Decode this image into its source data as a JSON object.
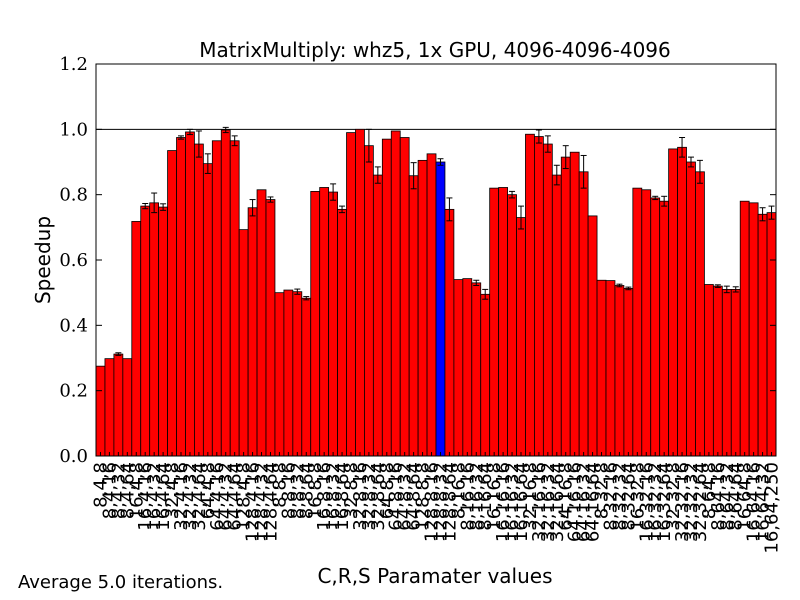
{
  "footer_note": "Average 5.0 iterations.",
  "chart_data": {
    "type": "bar",
    "title": "MatrixMultiply: whz5, 1x GPU, 4096-4096-4096",
    "xlabel": "C,R,S Paramater values",
    "ylabel": "Speedup",
    "ylim": [
      0,
      1.2
    ],
    "yticks": [
      "0.0",
      "0.2",
      "0.4",
      "0.6",
      "0.8",
      "1.0",
      "1.2"
    ],
    "reference_line": 1.0,
    "colors": {
      "bar": "#ff0000",
      "highlight": "#0000ff",
      "edge": "#000000"
    },
    "highlight_index": 38,
    "x_tick_labels": [
      "8,4,8",
      "8,4,16",
      "8,4,32",
      "8,4,64",
      "16,4,8",
      "16,4,16",
      "16,4,32",
      "16,4,64",
      "32,4,8",
      "32,4,16",
      "32,4,32",
      "32,4,64",
      "64,4,8",
      "64,4,16",
      "64,4,32",
      "64,4,64",
      "128,4,8",
      "128,4,16",
      "128,4,32",
      "128,4,64",
      "8,8,8",
      "8,8,16",
      "8,8,32",
      "8,8,64",
      "16,8,8",
      "16,8,16",
      "16,8,32",
      "16,8,64",
      "32,8,8",
      "32,8,16",
      "32,8,32",
      "32,8,64",
      "64,8,8",
      "64,8,16",
      "64,8,32",
      "64,8,64",
      "128,8,8",
      "128,8,16",
      "128,8,32",
      "128,8,64",
      "8,16,8",
      "8,16,16",
      "8,16,32",
      "8,16,64",
      "16,16,8",
      "16,16,16",
      "16,16,32",
      "16,16,64",
      "32,16,8",
      "32,16,16",
      "32,16,32",
      "32,16,64",
      "64,16,8",
      "64,16,16",
      "64,16,32",
      "64,16,64",
      "8,32,8",
      "8,32,16",
      "8,32,32",
      "8,32,64",
      "16,32,8",
      "16,32,16",
      "16,32,32",
      "16,32,64",
      "32,32,8",
      "32,32,16",
      "32,32,32",
      "32,32,64",
      "8,64,8",
      "8,64,16",
      "8,64,32",
      "8,64,64",
      "16,64,8",
      "16,64,16",
      "16,64,32",
      "16,64,250"
    ],
    "values": [
      0.275,
      0.298,
      0.312,
      0.298,
      0.718,
      0.765,
      0.775,
      0.762,
      0.935,
      0.975,
      0.992,
      0.955,
      0.895,
      0.965,
      0.998,
      0.965,
      0.693,
      0.76,
      0.815,
      0.785,
      0.5,
      0.508,
      0.503,
      0.483,
      0.81,
      0.822,
      0.808,
      0.755,
      0.99,
      1.0,
      0.95,
      0.86,
      0.97,
      0.995,
      0.975,
      0.858,
      0.905,
      0.925,
      0.9,
      0.755,
      0.54,
      0.543,
      0.53,
      0.495,
      0.82,
      0.822,
      0.8,
      0.73,
      0.985,
      0.978,
      0.955,
      0.86,
      0.915,
      0.93,
      0.87,
      0.735,
      0.538,
      0.537,
      0.522,
      0.513,
      0.82,
      0.815,
      0.79,
      0.78,
      0.94,
      0.945,
      0.9,
      0.87,
      0.525,
      0.52,
      0.51,
      0.51,
      0.78,
      0.775,
      0.74,
      0.745
    ],
    "errors": [
      0,
      0,
      0.004,
      0,
      0,
      0.008,
      0.03,
      0.01,
      0,
      0.005,
      0.008,
      0.04,
      0.03,
      0,
      0.008,
      0.015,
      0,
      0.025,
      0,
      0.008,
      0,
      0,
      0.008,
      0.005,
      0,
      0,
      0.025,
      0.01,
      0,
      0,
      0.05,
      0.025,
      0,
      0,
      0,
      0.04,
      0,
      0,
      0.01,
      0.035,
      0,
      0,
      0.008,
      0.015,
      0,
      0,
      0.01,
      0.035,
      0,
      0.02,
      0.025,
      0.03,
      0.035,
      0,
      0.05,
      0,
      0,
      0,
      0.004,
      0.004,
      0,
      0,
      0.005,
      0.015,
      0,
      0.03,
      0.015,
      0.035,
      0,
      0.004,
      0.01,
      0.008,
      0,
      0,
      0.02,
      0.02
    ]
  }
}
